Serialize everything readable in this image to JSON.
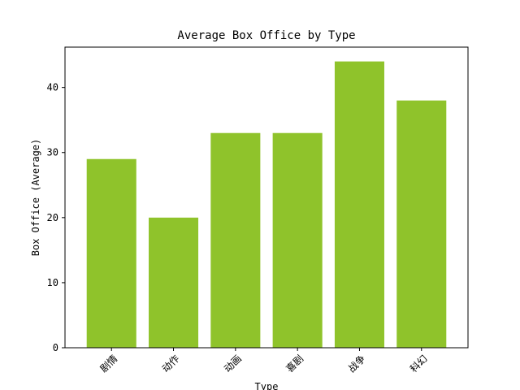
{
  "chart_data": {
    "type": "bar",
    "title": "Average Box Office by Type",
    "xlabel": "Type",
    "ylabel": "Box Office (Average)",
    "categories": [
      "剧情",
      "动作",
      "动画",
      "喜剧",
      "战争",
      "科幻"
    ],
    "values": [
      29,
      20,
      33,
      33,
      44,
      38
    ],
    "ylim": [
      0,
      46.2
    ],
    "yticks": [
      0,
      10,
      20,
      30,
      40
    ],
    "bar_color": "#8fc32b",
    "grid": false,
    "legend": "none"
  }
}
